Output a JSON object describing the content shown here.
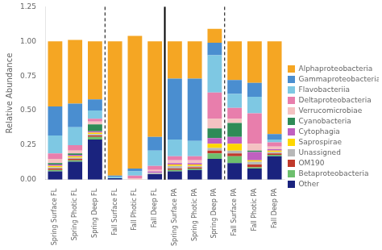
{
  "chart_data": {
    "type": "bar",
    "stacked": true,
    "categories": [
      "Spring Surface FL",
      "Spring Photic FL",
      "Spring Deep FL",
      "Fall Surface FL",
      "Fall Photic FL",
      "Fall Deep FL",
      "Spring Surface PA",
      "Spring Photic PA",
      "Spring Deep PA",
      "Fall Surface PA",
      "Fall Photic PA",
      "Fall Deep PA"
    ],
    "series": [
      {
        "name": "Alphaproteobacteria",
        "color": "#F5A623",
        "values": [
          0.47,
          0.46,
          0.42,
          0.97,
          0.96,
          0.69,
          0.27,
          0.27,
          0.1,
          0.28,
          0.3,
          0.67
        ]
      },
      {
        "name": "Gammaproteobacteria",
        "color": "#4A8ED0",
        "values": [
          0.21,
          0.17,
          0.08,
          0.01,
          0.02,
          0.1,
          0.44,
          0.45,
          0.09,
          0.1,
          0.1,
          0.04
        ]
      },
      {
        "name": "Flavobacteriia",
        "color": "#7EC8E3",
        "values": [
          0.13,
          0.13,
          0.06,
          0.01,
          0.03,
          0.11,
          0.12,
          0.11,
          0.27,
          0.1,
          0.12,
          0.02
        ]
      },
      {
        "name": "Deltaproteobacteria",
        "color": "#E87EAC",
        "values": [
          0.04,
          0.04,
          0.02,
          0.0,
          0.02,
          0.03,
          0.03,
          0.03,
          0.19,
          0.08,
          0.22,
          0.03
        ]
      },
      {
        "name": "Verrucomicrobiae",
        "color": "#F4C2C2",
        "values": [
          0.03,
          0.02,
          0.02,
          0.0,
          0.01,
          0.01,
          0.02,
          0.02,
          0.07,
          0.03,
          0.05,
          0.02
        ]
      },
      {
        "name": "Cyanobacteria",
        "color": "#2E8B57",
        "values": [
          0.01,
          0.01,
          0.05,
          0.0,
          0.0,
          0.0,
          0.0,
          0.0,
          0.07,
          0.1,
          0.01,
          0.0
        ]
      },
      {
        "name": "Cytophagia",
        "color": "#C060C0",
        "values": [
          0.01,
          0.01,
          0.01,
          0.0,
          0.0,
          0.01,
          0.01,
          0.01,
          0.04,
          0.05,
          0.06,
          0.01
        ]
      },
      {
        "name": "Saprospirae",
        "color": "#FFD700",
        "values": [
          0.01,
          0.01,
          0.01,
          0.0,
          0.0,
          0.0,
          0.01,
          0.01,
          0.03,
          0.05,
          0.01,
          0.01
        ]
      },
      {
        "name": "Unassigned",
        "color": "#B8B8B8",
        "values": [
          0.01,
          0.01,
          0.01,
          0.0,
          0.0,
          0.01,
          0.02,
          0.01,
          0.02,
          0.02,
          0.02,
          0.01
        ]
      },
      {
        "name": "OM190",
        "color": "#C0392B",
        "values": [
          0.01,
          0.01,
          0.01,
          0.0,
          0.0,
          0.0,
          0.01,
          0.01,
          0.02,
          0.02,
          0.02,
          0.01
        ]
      },
      {
        "name": "Betaproteobacteria",
        "color": "#6DBF6D",
        "values": [
          0.01,
          0.01,
          0.02,
          0.0,
          0.0,
          0.0,
          0.01,
          0.01,
          0.04,
          0.05,
          0.01,
          0.01
        ]
      },
      {
        "name": "Other",
        "color": "#1A237E",
        "values": [
          0.06,
          0.13,
          0.29,
          0.01,
          0.0,
          0.04,
          0.06,
          0.07,
          0.15,
          0.12,
          0.08,
          0.17
        ]
      }
    ],
    "ylabel": "Relative Abundance",
    "ylim": [
      0.0,
      1.25
    ],
    "yticks": [
      {
        "value": 0,
        "label": "0.00"
      },
      0.25,
      {
        "value": 0.5,
        "label": "0.50"
      },
      0.75,
      {
        "value": 1,
        "label": "1.00"
      },
      1.25
    ],
    "vlines": [
      {
        "x": 2.5,
        "line_style": "dashed"
      },
      {
        "x": 5.5,
        "line_style": "solid"
      },
      {
        "x": 8.5,
        "line_style": "dashed"
      }
    ],
    "grid": false,
    "legend": "right"
  }
}
